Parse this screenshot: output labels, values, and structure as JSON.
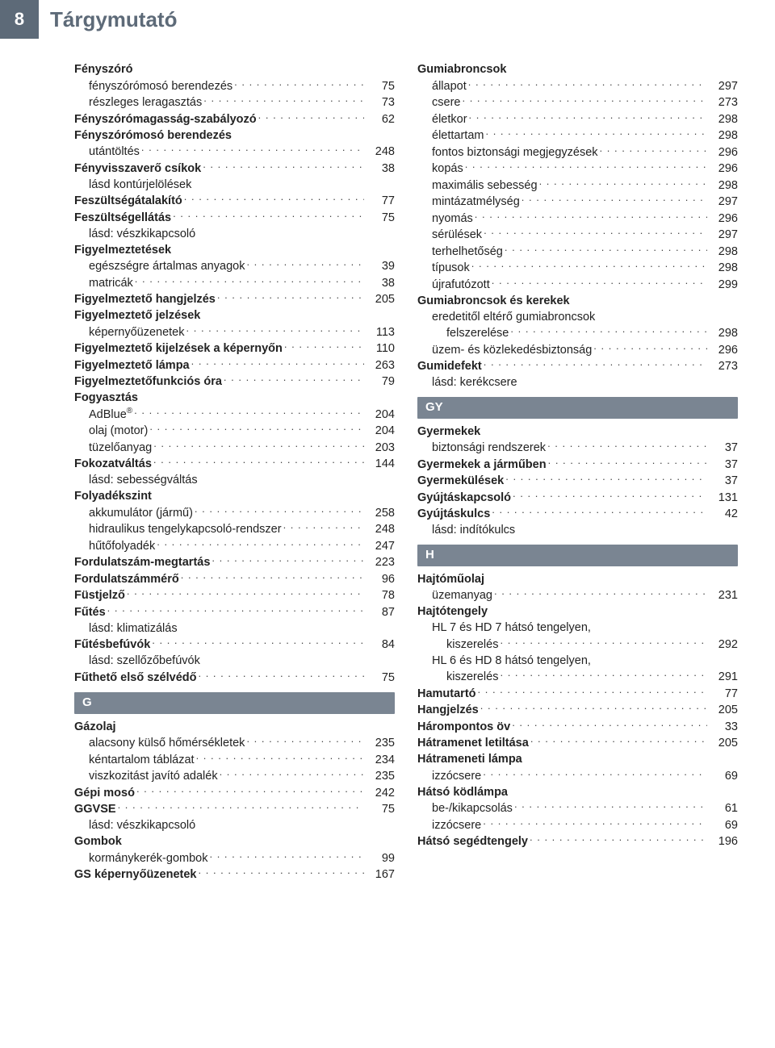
{
  "header": {
    "pagenum": "8",
    "title": "Tárgymutató"
  },
  "colors": {
    "header_bg": "#5d6a78",
    "bar_bg": "#7a8592",
    "text": "#222222"
  },
  "left": [
    {
      "type": "head",
      "bold": true,
      "text": "Fényszóró"
    },
    {
      "type": "entry",
      "indent": 1,
      "text": "fényszórómosó berendezés",
      "page": "75"
    },
    {
      "type": "entry",
      "indent": 1,
      "text": "részleges leragasztás",
      "page": "73"
    },
    {
      "type": "entry",
      "bold": true,
      "text": "Fényszórómagasság-szabályozó",
      "page": "62"
    },
    {
      "type": "head",
      "bold": true,
      "text": "Fényszórómosó berendezés"
    },
    {
      "type": "entry",
      "indent": 1,
      "text": "utántöltés",
      "page": "248"
    },
    {
      "type": "entry",
      "bold": true,
      "text": "Fényvisszaverő csíkok",
      "page": "38"
    },
    {
      "type": "note",
      "indent": 1,
      "text": "lásd kontúrjelölések"
    },
    {
      "type": "entry",
      "bold": true,
      "text": "Feszültségátalakító",
      "page": "77"
    },
    {
      "type": "entry",
      "bold": true,
      "text": "Feszültségellátás",
      "page": "75"
    },
    {
      "type": "note",
      "indent": 1,
      "text": "lásd: vészkikapcsoló"
    },
    {
      "type": "head",
      "bold": true,
      "text": "Figyelmeztetések"
    },
    {
      "type": "entry",
      "indent": 1,
      "text": "egészségre ártalmas anyagok",
      "page": "39"
    },
    {
      "type": "entry",
      "indent": 1,
      "text": "matricák",
      "page": "38"
    },
    {
      "type": "entry",
      "bold": true,
      "text": "Figyelmeztető hangjelzés",
      "page": "205"
    },
    {
      "type": "head",
      "bold": true,
      "text": "Figyelmeztető jelzések"
    },
    {
      "type": "entry",
      "indent": 1,
      "text": "képernyőüzenetek",
      "page": "113"
    },
    {
      "type": "entry",
      "bold": true,
      "text": "Figyelmeztető kijelzések a képernyőn",
      "page": "110"
    },
    {
      "type": "entry",
      "bold": true,
      "text": "Figyelmeztető lámpa",
      "page": "263"
    },
    {
      "type": "entry",
      "bold": true,
      "text": "Figyelmeztetőfunkciós óra",
      "page": "79"
    },
    {
      "type": "head",
      "bold": true,
      "text": "Fogyasztás"
    },
    {
      "type": "entry",
      "indent": 1,
      "text": "AdBlue®",
      "page": "204"
    },
    {
      "type": "entry",
      "indent": 1,
      "text": "olaj (motor)",
      "page": "204"
    },
    {
      "type": "entry",
      "indent": 1,
      "text": "tüzelőanyag",
      "page": "203"
    },
    {
      "type": "entry",
      "bold": true,
      "text": "Fokozatváltás",
      "page": "144"
    },
    {
      "type": "note",
      "indent": 1,
      "text": "lásd: sebességváltás"
    },
    {
      "type": "head",
      "bold": true,
      "text": "Folyadékszint"
    },
    {
      "type": "entry",
      "indent": 1,
      "text": "akkumulátor (jármű)",
      "page": "258"
    },
    {
      "type": "entry",
      "indent": 1,
      "text": "hidraulikus tengelykapcsoló-rendszer",
      "page": "248"
    },
    {
      "type": "entry",
      "indent": 1,
      "text": "hűtőfolyadék",
      "page": "247"
    },
    {
      "type": "entry",
      "bold": true,
      "text": "Fordulatszám-megtartás",
      "page": "223"
    },
    {
      "type": "entry",
      "bold": true,
      "text": "Fordulatszámmérő",
      "page": "96"
    },
    {
      "type": "entry",
      "bold": true,
      "text": "Füstjelző",
      "page": "78"
    },
    {
      "type": "entry",
      "bold": true,
      "text": "Fűtés",
      "page": "87"
    },
    {
      "type": "note",
      "indent": 1,
      "text": "lásd: klimatizálás"
    },
    {
      "type": "entry",
      "bold": true,
      "text": "Fűtésbefúvók",
      "page": "84"
    },
    {
      "type": "note",
      "indent": 1,
      "text": "lásd: szellőzőbefúvók"
    },
    {
      "type": "entry",
      "bold": true,
      "text": "Fűthető első szélvédő",
      "page": "75"
    },
    {
      "type": "bar",
      "text": "G"
    },
    {
      "type": "head",
      "bold": true,
      "text": "Gázolaj"
    },
    {
      "type": "entry",
      "indent": 1,
      "text": "alacsony külső hőmérsékletek",
      "page": "235"
    },
    {
      "type": "entry",
      "indent": 1,
      "text": "kéntartalom táblázat",
      "page": "234"
    },
    {
      "type": "entry",
      "indent": 1,
      "text": "viszkozitást javító adalék",
      "page": "235"
    },
    {
      "type": "entry",
      "bold": true,
      "text": "Gépi mosó",
      "page": "242"
    },
    {
      "type": "entry",
      "bold": true,
      "text": "GGVSE",
      "page": "75"
    },
    {
      "type": "note",
      "indent": 1,
      "text": "lásd: vészkikapcsoló"
    },
    {
      "type": "head",
      "bold": true,
      "text": "Gombok"
    },
    {
      "type": "entry",
      "indent": 1,
      "text": "kormánykerék-gombok",
      "page": "99"
    },
    {
      "type": "entry",
      "bold": true,
      "text": "GS képernyőüzenetek",
      "page": "167"
    }
  ],
  "right": [
    {
      "type": "head",
      "bold": true,
      "text": "Gumiabroncsok"
    },
    {
      "type": "entry",
      "indent": 1,
      "text": "állapot",
      "page": "297"
    },
    {
      "type": "entry",
      "indent": 1,
      "text": "csere",
      "page": "273"
    },
    {
      "type": "entry",
      "indent": 1,
      "text": "életkor",
      "page": "298"
    },
    {
      "type": "entry",
      "indent": 1,
      "text": "élettartam",
      "page": "298"
    },
    {
      "type": "entry",
      "indent": 1,
      "text": "fontos biztonsági megjegyzések",
      "page": "296"
    },
    {
      "type": "entry",
      "indent": 1,
      "text": "kopás",
      "page": "296"
    },
    {
      "type": "entry",
      "indent": 1,
      "text": "maximális sebesség",
      "page": "298"
    },
    {
      "type": "entry",
      "indent": 1,
      "text": "mintázatmélység",
      "page": "297"
    },
    {
      "type": "entry",
      "indent": 1,
      "text": "nyomás",
      "page": "296"
    },
    {
      "type": "entry",
      "indent": 1,
      "text": "sérülések",
      "page": "297"
    },
    {
      "type": "entry",
      "indent": 1,
      "text": "terhelhetőség",
      "page": "298"
    },
    {
      "type": "entry",
      "indent": 1,
      "text": "típusok",
      "page": "298"
    },
    {
      "type": "entry",
      "indent": 1,
      "text": "újrafutózott",
      "page": "299"
    },
    {
      "type": "head",
      "bold": true,
      "text": "Gumiabroncsok és kerekek"
    },
    {
      "type": "note",
      "indent": 1,
      "text": "eredetitől eltérő gumiabroncsok"
    },
    {
      "type": "entry",
      "indent": 2,
      "text": "felszerelése",
      "page": "298"
    },
    {
      "type": "entry",
      "indent": 1,
      "text": "üzem- és közlekedésbiztonság",
      "page": "296"
    },
    {
      "type": "entry",
      "bold": true,
      "text": "Gumidefekt",
      "page": "273"
    },
    {
      "type": "note",
      "indent": 1,
      "text": "lásd: kerékcsere"
    },
    {
      "type": "bar",
      "text": "GY"
    },
    {
      "type": "head",
      "bold": true,
      "text": "Gyermekek"
    },
    {
      "type": "entry",
      "indent": 1,
      "text": "biztonsági rendszerek",
      "page": "37"
    },
    {
      "type": "entry",
      "bold": true,
      "text": "Gyermekek a járműben",
      "page": "37"
    },
    {
      "type": "entry",
      "bold": true,
      "text": "Gyermekülések",
      "page": "37"
    },
    {
      "type": "entry",
      "bold": true,
      "text": "Gyújtáskapcsoló",
      "page": "131"
    },
    {
      "type": "entry",
      "bold": true,
      "text": "Gyújtáskulcs",
      "page": "42"
    },
    {
      "type": "note",
      "indent": 1,
      "text": "lásd: indítókulcs"
    },
    {
      "type": "bar",
      "text": "H"
    },
    {
      "type": "head",
      "bold": true,
      "text": "Hajtóműolaj"
    },
    {
      "type": "entry",
      "indent": 1,
      "text": "üzemanyag",
      "page": "231"
    },
    {
      "type": "head",
      "bold": true,
      "text": "Hajtótengely"
    },
    {
      "type": "note",
      "indent": 1,
      "text": "HL 7 és HD 7 hátsó tengelyen,"
    },
    {
      "type": "entry",
      "indent": 2,
      "text": "kiszerelés",
      "page": "292"
    },
    {
      "type": "note",
      "indent": 1,
      "text": "HL 6 és HD 8 hátsó tengelyen,"
    },
    {
      "type": "entry",
      "indent": 2,
      "text": "kiszerelés",
      "page": "291"
    },
    {
      "type": "entry",
      "bold": true,
      "text": "Hamutartó",
      "page": "77"
    },
    {
      "type": "entry",
      "bold": true,
      "text": "Hangjelzés",
      "page": "205"
    },
    {
      "type": "entry",
      "bold": true,
      "text": "Hárompontos öv",
      "page": "33"
    },
    {
      "type": "entry",
      "bold": true,
      "text": "Hátramenet letiltása",
      "page": "205"
    },
    {
      "type": "head",
      "bold": true,
      "text": "Hátrameneti lámpa"
    },
    {
      "type": "entry",
      "indent": 1,
      "text": "izzócsere",
      "page": "69"
    },
    {
      "type": "head",
      "bold": true,
      "text": "Hátsó ködlámpa"
    },
    {
      "type": "entry",
      "indent": 1,
      "text": "be-/kikapcsolás",
      "page": "61"
    },
    {
      "type": "entry",
      "indent": 1,
      "text": "izzócsere",
      "page": "69"
    },
    {
      "type": "entry",
      "bold": true,
      "text": "Hátsó segédtengely",
      "page": "196"
    }
  ]
}
